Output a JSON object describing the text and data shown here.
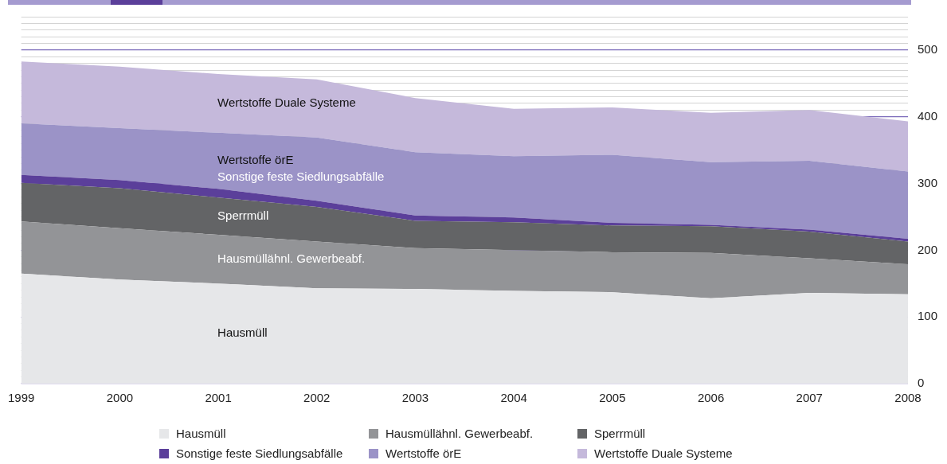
{
  "chart_data": {
    "type": "area",
    "stacked": true,
    "categories": [
      "1999",
      "2000",
      "2001",
      "2002",
      "2003",
      "2004",
      "2005",
      "2006",
      "2007",
      "2008"
    ],
    "series": [
      {
        "name": "Hausmüll",
        "color": "#e6e7e9",
        "values": [
          165,
          156,
          150,
          143,
          142,
          139,
          137,
          128,
          136,
          134
        ]
      },
      {
        "name": "Hausmüllähnl. Gewerbeabf.",
        "color": "#939497",
        "values": [
          78,
          77,
          73,
          70,
          61,
          61,
          60,
          68,
          52,
          45
        ]
      },
      {
        "name": "Sperrmüll",
        "color": "#636466",
        "values": [
          58,
          60,
          56,
          52,
          41,
          42,
          40,
          40,
          40,
          34
        ]
      },
      {
        "name": "Sonstige feste Siedlungsabfälle",
        "color": "#5b3f9a",
        "values": [
          12,
          12,
          13,
          9,
          8,
          7,
          4,
          2,
          3,
          4
        ]
      },
      {
        "name": "Wertstoffe örE",
        "color": "#9b93c7",
        "values": [
          77,
          78,
          84,
          95,
          95,
          92,
          102,
          94,
          103,
          101
        ]
      },
      {
        "name": "Wertstoffe Duale Systeme",
        "color": "#c5b9db",
        "values": [
          93,
          92,
          88,
          87,
          81,
          71,
          71,
          74,
          76,
          75
        ]
      }
    ],
    "ylim": [
      0,
      550
    ],
    "yticks": [
      0,
      {
        "value": 10,
        "label": null
      },
      {
        "value": 20,
        "label": null
      },
      {
        "value": 30,
        "label": null
      },
      {
        "value": 40,
        "label": null
      },
      {
        "value": 50,
        "label": null
      },
      {
        "value": 60,
        "label": null
      },
      {
        "value": 70,
        "label": null
      },
      {
        "value": 80,
        "label": null
      },
      {
        "value": 90,
        "label": null
      },
      100,
      {
        "value": 110,
        "label": null
      },
      {
        "value": 120,
        "label": null
      },
      {
        "value": 130,
        "label": null
      },
      {
        "value": 140,
        "label": null
      },
      {
        "value": 150,
        "label": null
      },
      {
        "value": 160,
        "label": null
      },
      {
        "value": 170,
        "label": null
      },
      {
        "value": 180,
        "label": null
      },
      {
        "value": 190,
        "label": null
      },
      200,
      {
        "value": 210,
        "label": null
      },
      {
        "value": 220,
        "label": null
      },
      {
        "value": 230,
        "label": null
      },
      {
        "value": 240,
        "label": null
      },
      {
        "value": 250,
        "label": null
      },
      {
        "value": 260,
        "label": null
      },
      {
        "value": 270,
        "label": null
      },
      {
        "value": 280,
        "label": null
      },
      {
        "value": 290,
        "label": null
      },
      300,
      {
        "value": 310,
        "label": null
      },
      {
        "value": 320,
        "label": null
      },
      {
        "value": 330,
        "label": null
      },
      {
        "value": 340,
        "label": null
      },
      {
        "value": 350,
        "label": null
      },
      {
        "value": 360,
        "label": null
      },
      {
        "value": 370,
        "label": null
      },
      {
        "value": 380,
        "label": null
      },
      {
        "value": 390,
        "label": null
      },
      400,
      {
        "value": 410,
        "label": null
      },
      {
        "value": 420,
        "label": null
      },
      {
        "value": 430,
        "label": null
      },
      {
        "value": 440,
        "label": null
      },
      {
        "value": 450,
        "label": null
      },
      {
        "value": 460,
        "label": null
      },
      {
        "value": 470,
        "label": null
      },
      {
        "value": 480,
        "label": null
      },
      {
        "value": 490,
        "label": null
      },
      500,
      {
        "value": 510,
        "label": null
      },
      {
        "value": 520,
        "label": null
      },
      {
        "value": 530,
        "label": null
      },
      {
        "value": 540,
        "label": null
      },
      {
        "value": 550,
        "label": null
      }
    ],
    "grid": "y",
    "legend": "bottom"
  }
}
